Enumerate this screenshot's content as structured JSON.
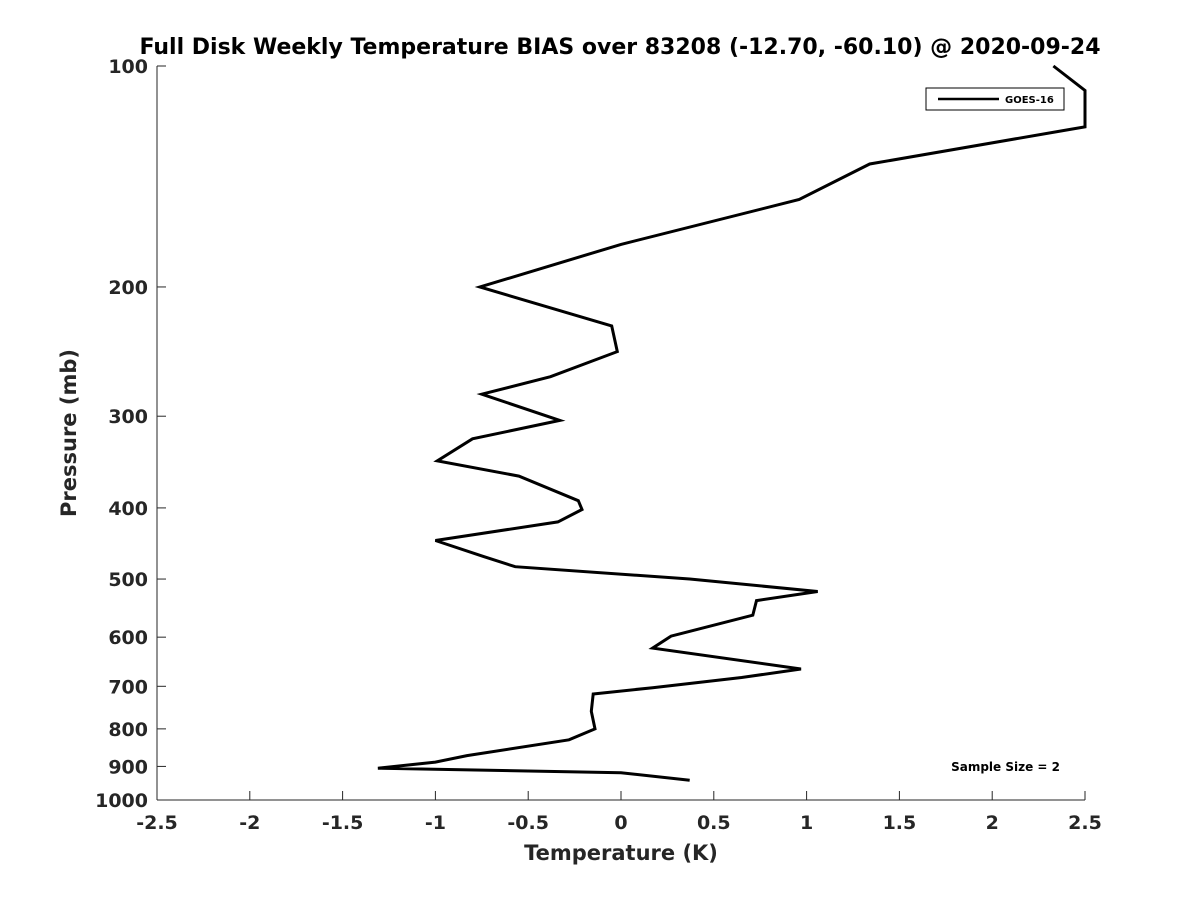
{
  "chart_data": {
    "type": "line",
    "title": "Full Disk Weekly Temperature BIAS over 83208 (-12.70, -60.10) @ 2020-09-24",
    "xlabel": "Temperature (K)",
    "ylabel": "Pressure (mb)",
    "xlim": [
      -2.5,
      2.5
    ],
    "ylim": [
      100,
      1000
    ],
    "y_scale": "log",
    "y_reversed": true,
    "x_ticks": [
      "-2.5",
      "-2",
      "-1.5",
      "-1",
      "-0.5",
      "0",
      "0.5",
      "1",
      "1.5",
      "2",
      "2.5"
    ],
    "x_tick_values": [
      -2.5,
      -2,
      -1.5,
      -1,
      -0.5,
      0,
      0.5,
      1,
      1.5,
      2,
      2.5
    ],
    "y_ticks": [
      "100",
      "200",
      "300",
      "400",
      "500",
      "600",
      "700",
      "800",
      "900",
      "1000"
    ],
    "y_tick_values": [
      100,
      200,
      300,
      400,
      500,
      600,
      700,
      800,
      900,
      1000
    ],
    "grid": false,
    "legend_position": "top-right",
    "annotation": "Sample Size = 2",
    "series": [
      {
        "name": "GOES-16",
        "color": "#000000",
        "points": [
          {
            "x": 2.33,
            "y": 100
          },
          {
            "x": 2.5,
            "y": 108
          },
          {
            "x": 2.5,
            "y": 121
          },
          {
            "x": 1.34,
            "y": 136
          },
          {
            "x": 0.96,
            "y": 152
          },
          {
            "x": 0.0,
            "y": 175
          },
          {
            "x": -0.76,
            "y": 200
          },
          {
            "x": -0.05,
            "y": 226
          },
          {
            "x": -0.02,
            "y": 245
          },
          {
            "x": -0.38,
            "y": 265
          },
          {
            "x": -0.75,
            "y": 280
          },
          {
            "x": -0.33,
            "y": 304
          },
          {
            "x": -0.8,
            "y": 322
          },
          {
            "x": -0.99,
            "y": 345
          },
          {
            "x": -0.55,
            "y": 362
          },
          {
            "x": -0.23,
            "y": 391
          },
          {
            "x": -0.21,
            "y": 402
          },
          {
            "x": -0.34,
            "y": 418
          },
          {
            "x": -1.0,
            "y": 443
          },
          {
            "x": -0.74,
            "y": 466
          },
          {
            "x": -0.57,
            "y": 481
          },
          {
            "x": 0.37,
            "y": 500
          },
          {
            "x": 1.06,
            "y": 520
          },
          {
            "x": 0.73,
            "y": 535
          },
          {
            "x": 0.71,
            "y": 560
          },
          {
            "x": 0.27,
            "y": 598
          },
          {
            "x": 0.17,
            "y": 621
          },
          {
            "x": 0.97,
            "y": 663
          },
          {
            "x": 0.65,
            "y": 681
          },
          {
            "x": 0.17,
            "y": 703
          },
          {
            "x": -0.15,
            "y": 717
          },
          {
            "x": -0.16,
            "y": 757
          },
          {
            "x": -0.14,
            "y": 800
          },
          {
            "x": -0.28,
            "y": 828
          },
          {
            "x": -0.83,
            "y": 870
          },
          {
            "x": -1.0,
            "y": 888
          },
          {
            "x": -1.31,
            "y": 905
          },
          {
            "x": 0.0,
            "y": 918
          },
          {
            "x": 0.37,
            "y": 940
          }
        ]
      }
    ]
  }
}
